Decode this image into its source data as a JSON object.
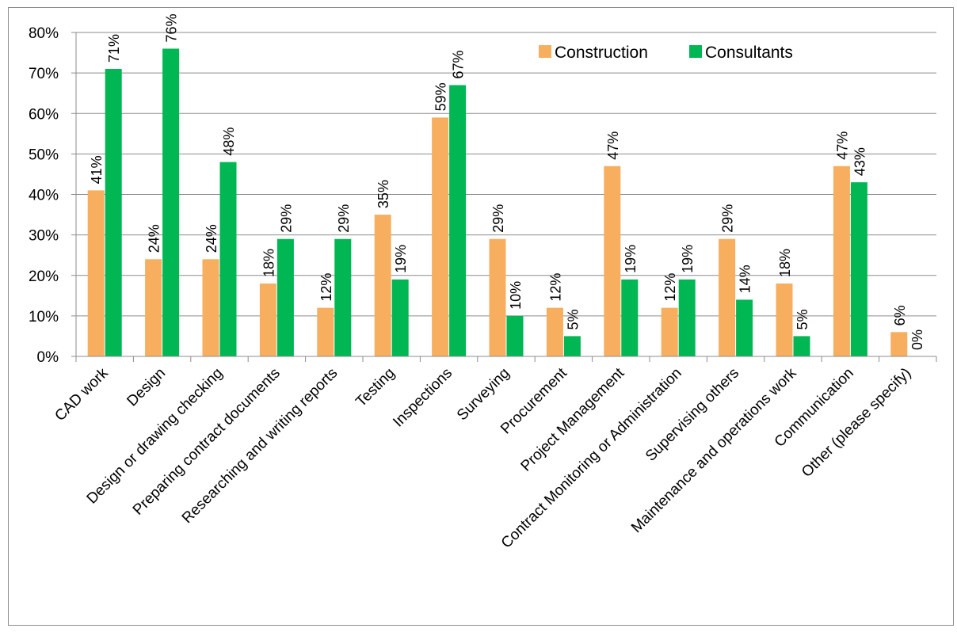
{
  "chart_data": {
    "type": "bar",
    "categories": [
      "CAD work",
      "Design",
      "Design or drawing checking",
      "Preparing contract documents",
      "Researching and writing reports",
      "Testing",
      "Inspections",
      "Surveying",
      "Procurement",
      "Project Management",
      "Contract Monitoring or Administration",
      "Supervising others",
      "Maintenance and operations work",
      "Communication",
      "Other (please specify)"
    ],
    "series": [
      {
        "name": "Construction",
        "color": "#F8AE5F",
        "values": [
          41,
          24,
          24,
          18,
          12,
          35,
          59,
          29,
          12,
          47,
          12,
          29,
          18,
          47,
          6
        ],
        "labels": [
          "41%",
          "24%",
          "24%",
          "18%",
          "12%",
          "35%",
          "59%",
          "29%",
          "12%",
          "47%",
          "12%",
          "29%",
          "18%",
          "47%",
          "6%"
        ]
      },
      {
        "name": "Consultants",
        "color": "#00B754",
        "values": [
          71,
          76,
          48,
          29,
          29,
          19,
          67,
          10,
          5,
          19,
          19,
          14,
          5,
          43,
          0
        ],
        "labels": [
          "71%",
          "76%",
          "48%",
          "29%",
          "29%",
          "19%",
          "67%",
          "10%",
          "5%",
          "19%",
          "19%",
          "14%",
          "5%",
          "43%",
          "0%"
        ]
      }
    ],
    "ylim": [
      0,
      80
    ],
    "y_ticks": [
      "0%",
      "10%",
      "20%",
      "30%",
      "40%",
      "50%",
      "60%",
      "70%",
      "80%"
    ],
    "grid": true,
    "legend": "top-right",
    "title": "",
    "xlabel": "",
    "ylabel": ""
  }
}
